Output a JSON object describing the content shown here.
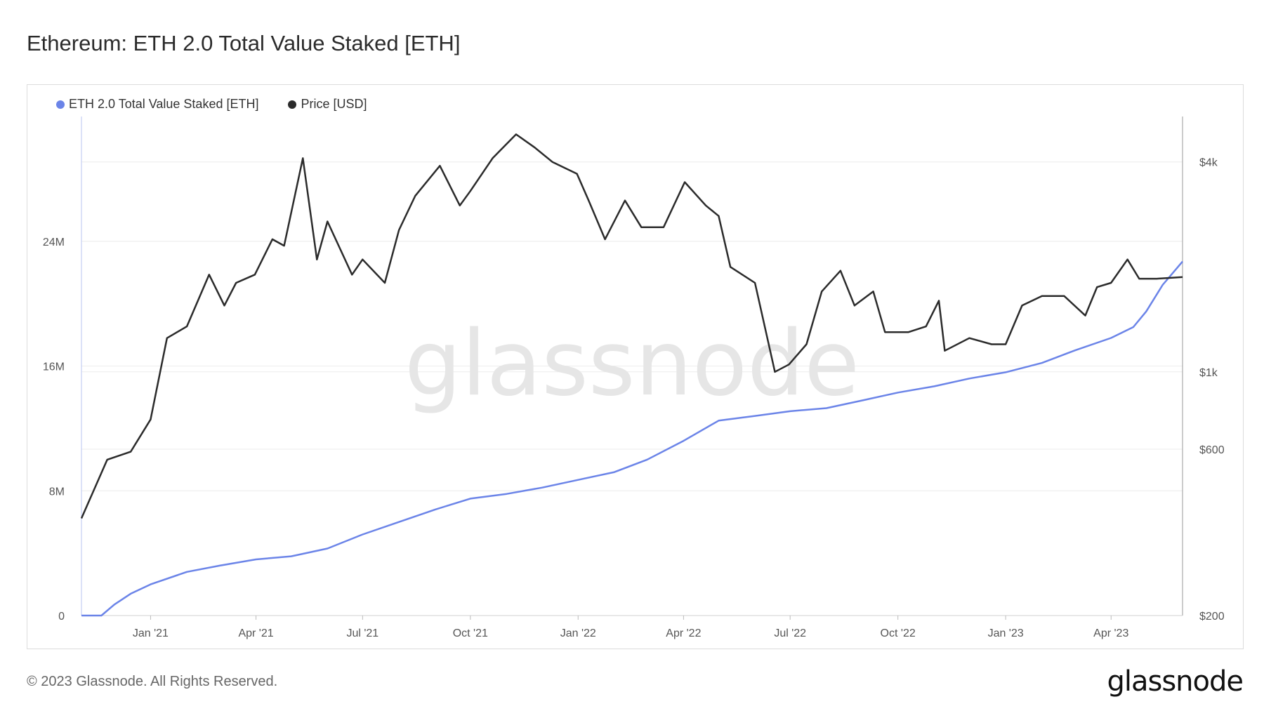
{
  "title": "Ethereum: ETH 2.0 Total Value Staked [ETH]",
  "legend": {
    "series_staked": "ETH 2.0 Total Value Staked [ETH]",
    "series_price": "Price [USD]"
  },
  "watermark": "glassnode",
  "footer": {
    "copyright": "© 2023 Glassnode. All Rights Reserved.",
    "logo": "glassnode"
  },
  "colors": {
    "staked": "#6b84e8",
    "price": "#2b2b2b",
    "grid": "#ececec",
    "axis_text": "#555555"
  },
  "chart_data": {
    "type": "line",
    "x_ticks": [
      "Jan '21",
      "Apr '21",
      "Jul '21",
      "Oct '21",
      "Jan '22",
      "Apr '22",
      "Jul '22",
      "Oct '22",
      "Jan '23",
      "Apr '23"
    ],
    "x_range": [
      "2020-11-03",
      "2023-06-01"
    ],
    "y_left": {
      "ticks": [
        "0",
        "8M",
        "16M",
        "24M"
      ],
      "values": [
        0,
        8000000,
        16000000,
        24000000
      ],
      "range": [
        0,
        24000000
      ]
    },
    "y_right": {
      "ticks": [
        "$200",
        "$600",
        "$1k",
        "$4k"
      ],
      "values": [
        200,
        600,
        1000,
        4000
      ],
      "scale": "log"
    },
    "grid": true,
    "legend_position": "top-left",
    "series": [
      {
        "name": "ETH 2.0 Total Value Staked [ETH]",
        "axis": "left",
        "points": [
          [
            "2020-11-03",
            0
          ],
          [
            "2020-11-20",
            0
          ],
          [
            "2020-12-01",
            700000
          ],
          [
            "2020-12-15",
            1400000
          ],
          [
            "2021-01-01",
            2000000
          ],
          [
            "2021-02-01",
            2800000
          ],
          [
            "2021-03-01",
            3200000
          ],
          [
            "2021-04-01",
            3600000
          ],
          [
            "2021-05-01",
            3800000
          ],
          [
            "2021-06-01",
            4300000
          ],
          [
            "2021-07-01",
            5200000
          ],
          [
            "2021-08-01",
            6000000
          ],
          [
            "2021-09-01",
            6800000
          ],
          [
            "2021-10-01",
            7500000
          ],
          [
            "2021-11-01",
            7800000
          ],
          [
            "2021-12-01",
            8200000
          ],
          [
            "2022-01-01",
            8700000
          ],
          [
            "2022-02-01",
            9200000
          ],
          [
            "2022-03-01",
            10000000
          ],
          [
            "2022-04-01",
            11200000
          ],
          [
            "2022-05-01",
            12500000
          ],
          [
            "2022-06-01",
            12800000
          ],
          [
            "2022-07-01",
            13100000
          ],
          [
            "2022-08-01",
            13300000
          ],
          [
            "2022-09-01",
            13800000
          ],
          [
            "2022-10-01",
            14300000
          ],
          [
            "2022-11-01",
            14700000
          ],
          [
            "2022-12-01",
            15200000
          ],
          [
            "2023-01-01",
            15600000
          ],
          [
            "2023-02-01",
            16200000
          ],
          [
            "2023-03-01",
            17000000
          ],
          [
            "2023-04-01",
            17800000
          ],
          [
            "2023-04-20",
            18500000
          ],
          [
            "2023-05-01",
            19500000
          ],
          [
            "2023-05-15",
            21200000
          ],
          [
            "2023-06-01",
            22700000
          ]
        ]
      },
      {
        "name": "Price [USD]",
        "axis": "right",
        "points": [
          [
            "2020-11-03",
            380
          ],
          [
            "2020-11-25",
            560
          ],
          [
            "2020-12-15",
            590
          ],
          [
            "2021-01-01",
            730
          ],
          [
            "2021-01-15",
            1250
          ],
          [
            "2021-02-01",
            1350
          ],
          [
            "2021-02-20",
            1900
          ],
          [
            "2021-03-05",
            1550
          ],
          [
            "2021-03-15",
            1800
          ],
          [
            "2021-03-31",
            1900
          ],
          [
            "2021-04-15",
            2400
          ],
          [
            "2021-04-25",
            2300
          ],
          [
            "2021-05-11",
            4100
          ],
          [
            "2021-05-23",
            2100
          ],
          [
            "2021-06-01",
            2700
          ],
          [
            "2021-06-22",
            1900
          ],
          [
            "2021-07-01",
            2100
          ],
          [
            "2021-07-20",
            1800
          ],
          [
            "2021-08-01",
            2550
          ],
          [
            "2021-08-15",
            3200
          ],
          [
            "2021-09-05",
            3900
          ],
          [
            "2021-09-22",
            3000
          ],
          [
            "2021-10-01",
            3300
          ],
          [
            "2021-10-20",
            4100
          ],
          [
            "2021-11-09",
            4800
          ],
          [
            "2021-11-25",
            4400
          ],
          [
            "2021-12-10",
            4000
          ],
          [
            "2021-12-31",
            3700
          ],
          [
            "2022-01-10",
            3100
          ],
          [
            "2022-01-24",
            2400
          ],
          [
            "2022-02-10",
            3100
          ],
          [
            "2022-02-24",
            2600
          ],
          [
            "2022-03-15",
            2600
          ],
          [
            "2022-04-02",
            3500
          ],
          [
            "2022-04-20",
            3000
          ],
          [
            "2022-05-01",
            2800
          ],
          [
            "2022-05-11",
            2000
          ],
          [
            "2022-06-01",
            1800
          ],
          [
            "2022-06-18",
            1000
          ],
          [
            "2022-06-30",
            1050
          ],
          [
            "2022-07-15",
            1200
          ],
          [
            "2022-07-28",
            1700
          ],
          [
            "2022-08-13",
            1950
          ],
          [
            "2022-08-25",
            1550
          ],
          [
            "2022-09-10",
            1700
          ],
          [
            "2022-09-20",
            1300
          ],
          [
            "2022-10-10",
            1300
          ],
          [
            "2022-10-25",
            1350
          ],
          [
            "2022-11-05",
            1600
          ],
          [
            "2022-11-10",
            1150
          ],
          [
            "2022-12-01",
            1250
          ],
          [
            "2022-12-20",
            1200
          ],
          [
            "2023-01-01",
            1200
          ],
          [
            "2023-01-15",
            1550
          ],
          [
            "2023-02-01",
            1650
          ],
          [
            "2023-02-20",
            1650
          ],
          [
            "2023-03-10",
            1450
          ],
          [
            "2023-03-20",
            1750
          ],
          [
            "2023-04-01",
            1800
          ],
          [
            "2023-04-15",
            2100
          ],
          [
            "2023-04-25",
            1850
          ],
          [
            "2023-05-10",
            1850
          ],
          [
            "2023-06-01",
            1870
          ]
        ]
      }
    ]
  }
}
